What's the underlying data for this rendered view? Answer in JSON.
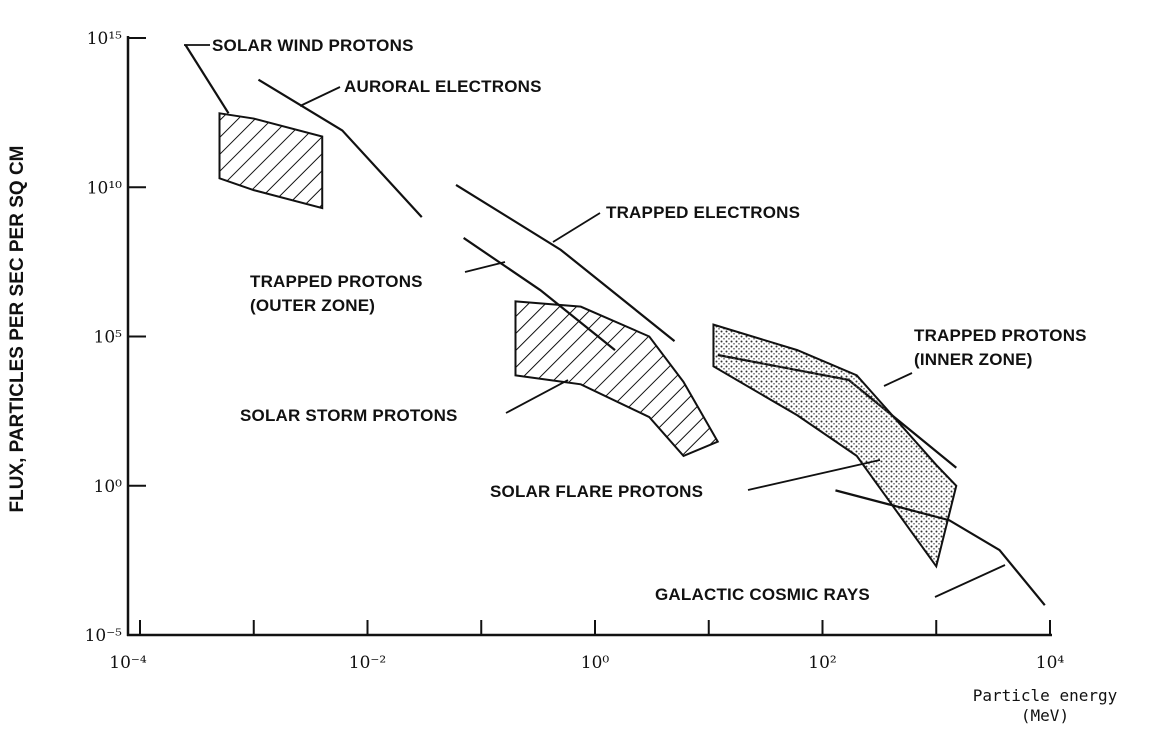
{
  "chart_data": {
    "type": "line",
    "y_label": "FLUX, PARTICLES PER SEC PER SQ CM",
    "x_label": "Particle energy (MeV)",
    "xscale": "log",
    "yscale": "log",
    "xlim": [
      0.0001,
      10000
    ],
    "ylim": [
      1e-05,
      1000000000000000
    ],
    "xticks": [
      {
        "value": 0.0001,
        "label": "10⁻⁴"
      },
      {
        "value": 0.01,
        "label": "10⁻²"
      },
      {
        "value": 1,
        "label": "10⁰"
      },
      {
        "value": 100,
        "label": "10²"
      },
      {
        "value": 10000,
        "label": "10⁴"
      }
    ],
    "xminorticks": [
      0.001,
      0.1,
      10,
      1000
    ],
    "yticks": [
      {
        "value": 1e-05,
        "label": "10⁻⁵"
      },
      {
        "value": 1,
        "label": "10⁰"
      },
      {
        "value": 100000,
        "label": "10⁵"
      },
      {
        "value": 10000000000,
        "label": "10¹⁰"
      },
      {
        "value": 1000000000000000,
        "label": "10¹⁵"
      }
    ],
    "color": "#111111",
    "series": [
      {
        "name": "SOLAR WIND PROTONS",
        "x": [
          0.00025,
          0.0006
        ],
        "values": [
          600000000000000,
          3000000000000
        ],
        "band": {
          "fill": "hatch",
          "x": [
            0.0005,
            0.001,
            0.004
          ],
          "upper": [
            3000000000000,
            2000000000000,
            500000000000
          ],
          "lower": [
            20000000000,
            8000000000,
            2000000000
          ]
        }
      },
      {
        "name": "AURORAL ELECTRONS",
        "x": [
          0.0011,
          0.006,
          0.03
        ],
        "values": [
          40000000000000,
          800000000000,
          1000000000
        ]
      },
      {
        "name": "TRAPPED ELECTRONS",
        "x": [
          0.06,
          0.5,
          5
        ],
        "values": [
          12000000000,
          80000000,
          70000
        ]
      },
      {
        "name": "TRAPPED PROTONS (OUTER ZONE)",
        "x": [
          0.07,
          0.33,
          1.5
        ],
        "values": [
          200000000,
          3600000,
          35000
        ]
      },
      {
        "name": "SOLAR STORM PROTONS",
        "band": {
          "fill": "hatch",
          "x": [
            0.2,
            0.75,
            3,
            6,
            12
          ],
          "upper": [
            1500000,
            1000000,
            100000,
            3000,
            30
          ],
          "lower": [
            5000,
            2500,
            200,
            10,
            30
          ]
        }
      },
      {
        "name": "TRAPPED PROTONS (INNER ZONE)",
        "x": [
          12,
          170,
          1500
        ],
        "values": [
          24000,
          3500,
          4
        ]
      },
      {
        "name": "SOLAR FLARE PROTONS",
        "band": {
          "fill": "stipple",
          "x": [
            11,
            60,
            200,
            1000,
            1500
          ],
          "upper": [
            250000,
            35000,
            5000,
            5,
            1
          ],
          "lower": [
            10000,
            230,
            10,
            0.002,
            1
          ]
        }
      },
      {
        "name": "GALACTIC COSMIC RAYS",
        "x": [
          130,
          1300,
          3600,
          9000
        ],
        "values": [
          0.7,
          0.07,
          0.007,
          0.0001
        ]
      }
    ]
  }
}
